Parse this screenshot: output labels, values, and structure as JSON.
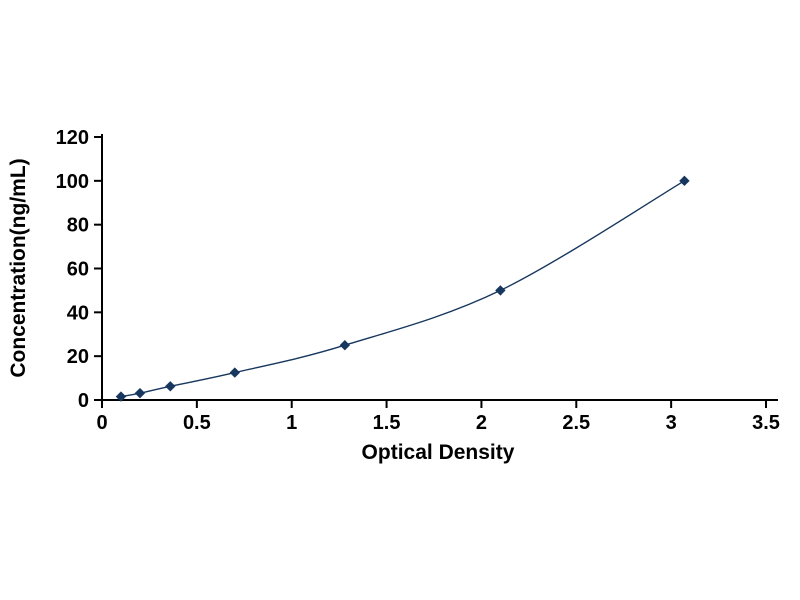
{
  "chart_data": {
    "type": "line",
    "title": "",
    "xlabel": "Optical Density",
    "ylabel": "Concentration(ng/mL)",
    "x": [
      0.1,
      0.2,
      0.36,
      0.7,
      1.28,
      2.1,
      3.07
    ],
    "y": [
      1.56,
      3.12,
      6.25,
      12.5,
      25,
      50,
      100
    ],
    "xlim": [
      0,
      3.5
    ],
    "ylim": [
      0,
      120
    ],
    "x_ticks": [
      0,
      0.5,
      1,
      1.5,
      2,
      2.5,
      3,
      3.5
    ],
    "y_ticks": [
      0,
      20,
      40,
      60,
      80,
      100,
      120
    ],
    "x_tick_labels": [
      "0",
      "0.5",
      "1",
      "1.5",
      "2",
      "2.5",
      "3",
      "3.5"
    ],
    "y_tick_labels": [
      "0",
      "20",
      "40",
      "60",
      "80",
      "100",
      "120"
    ],
    "grid": false,
    "legend": "none",
    "marker": "diamond",
    "series_color": "#17375E",
    "axis_color": "#000000",
    "background_color": "#ffffff"
  }
}
